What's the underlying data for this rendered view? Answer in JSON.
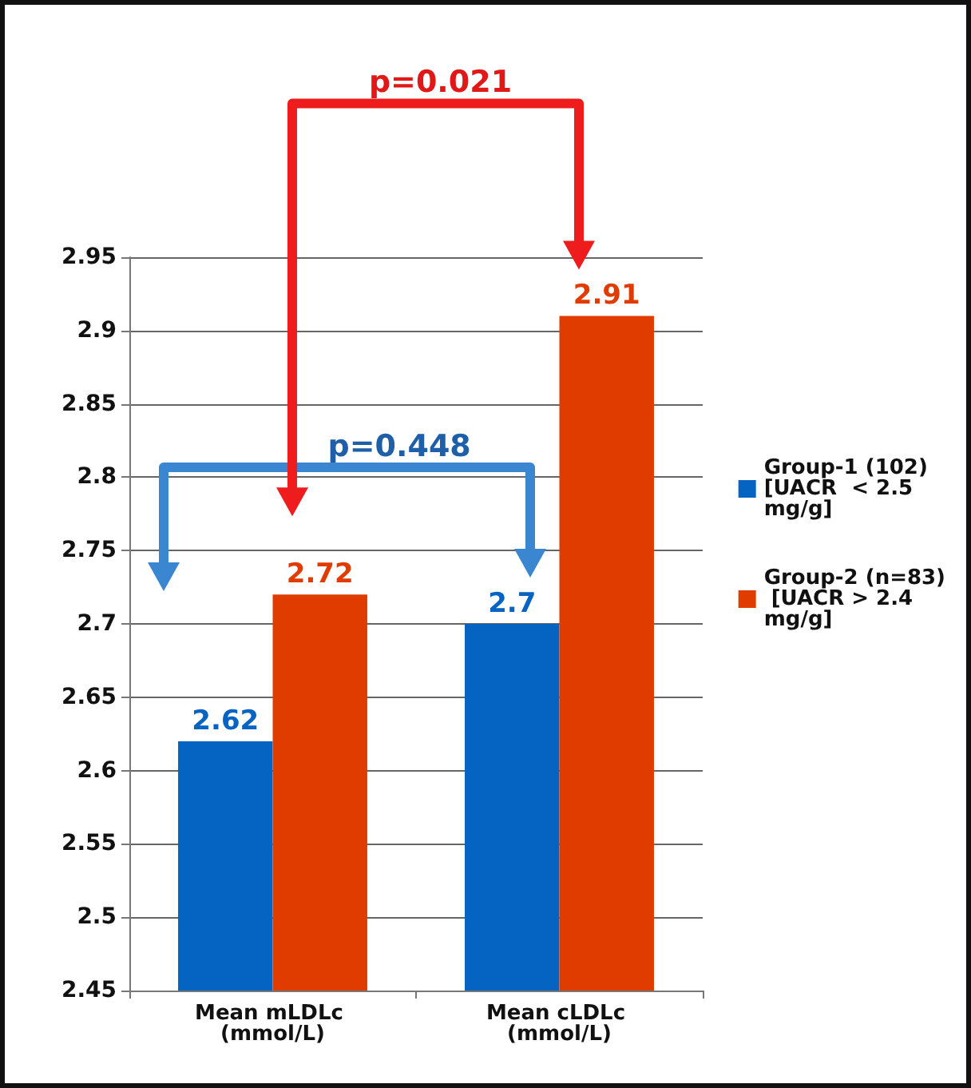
{
  "chart_data": {
    "type": "bar",
    "categories": [
      "Mean mLDLc (mmol/L)",
      "Mean cLDLc (mmol/L)"
    ],
    "series": [
      {
        "name": "Group-1 (102) [UACR  < 2.5 mg/g]",
        "color": "#0563c1",
        "values": [
          2.62,
          2.7
        ]
      },
      {
        "name": "Group-2 (n=83) [UACR > 2.4 mg/g]",
        "color": "#e03c00",
        "values": [
          2.72,
          2.91
        ]
      }
    ],
    "ylim": [
      2.45,
      2.95
    ],
    "yticks": [
      2.45,
      2.5,
      2.55,
      2.6,
      2.65,
      2.7,
      2.75,
      2.8,
      2.85,
      2.9,
      2.95
    ],
    "grid": "y",
    "legend": "right",
    "data_labels": true,
    "annotations": [
      "p=0.448",
      "p=0.021"
    ]
  }
}
